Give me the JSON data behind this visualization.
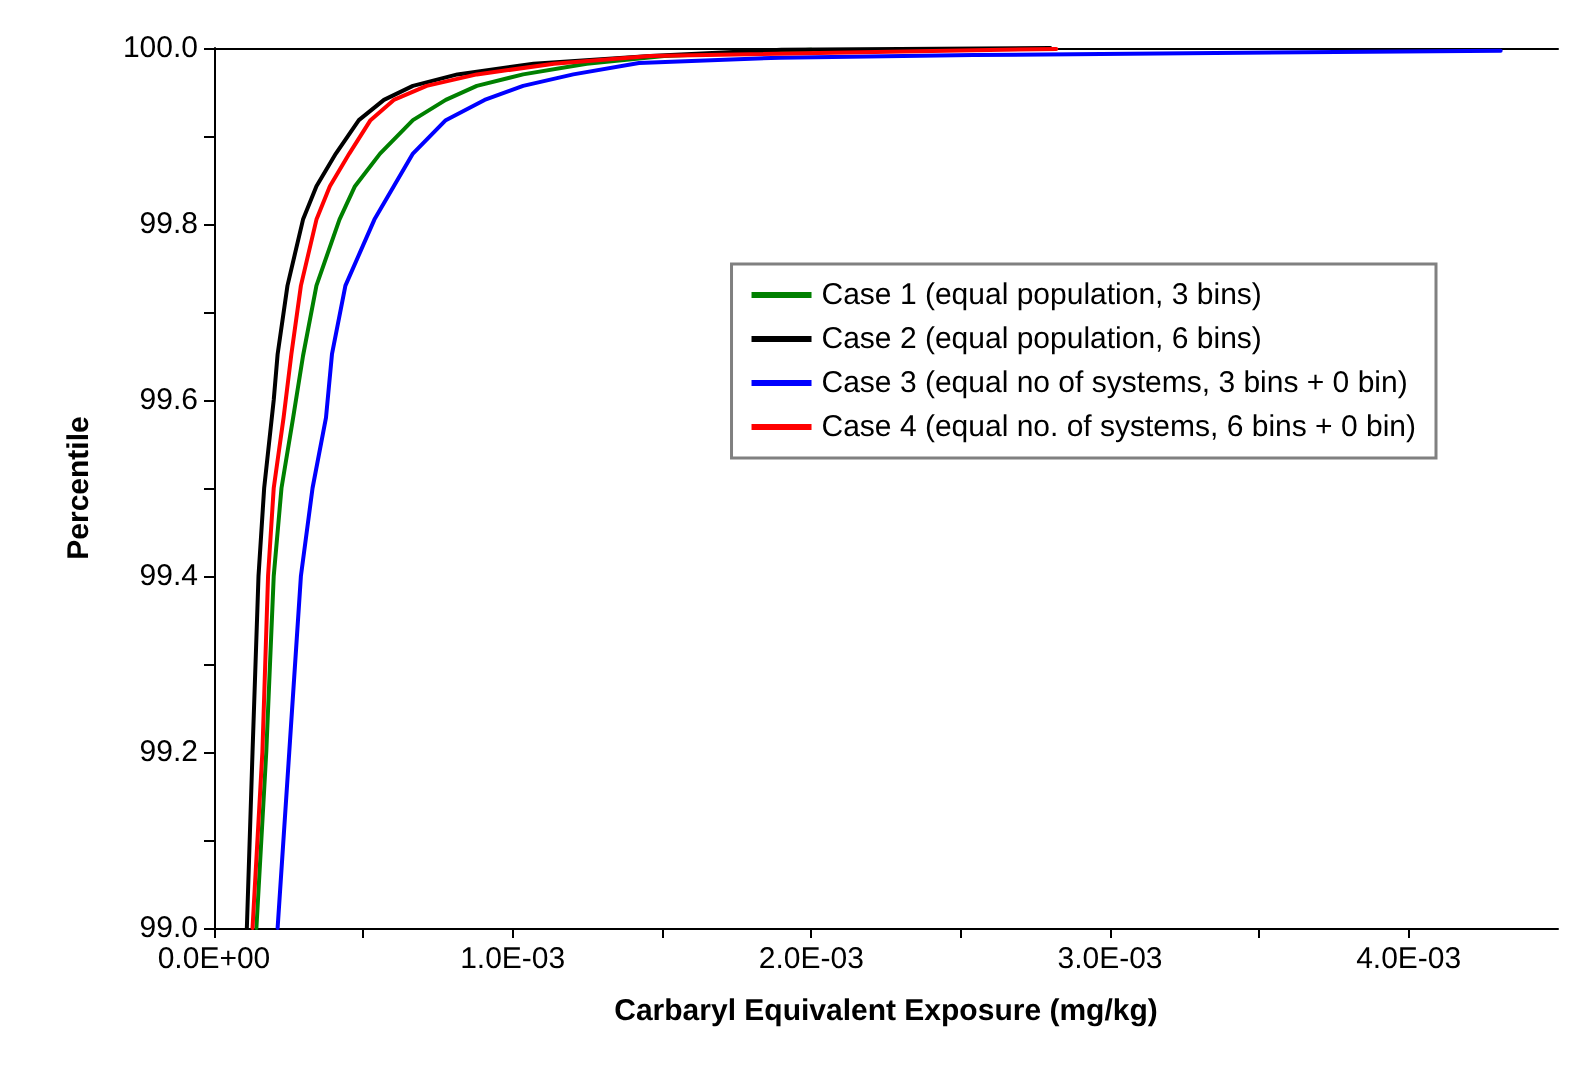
{
  "chart_data": {
    "type": "line",
    "xlabel": "Carbaryl Equivalent Exposure (mg/kg)",
    "ylabel": "Percentile",
    "xlim": [
      0,
      0.0045
    ],
    "ylim": [
      99.0,
      100.0
    ],
    "xticks": [
      {
        "value": 0,
        "label": "0.0E+00"
      },
      {
        "value": 0.0005,
        "label": null
      },
      {
        "value": 0.001,
        "label": "1.0E-03"
      },
      {
        "value": 0.0015,
        "label": null
      },
      {
        "value": 0.002,
        "label": "2.0E-03"
      },
      {
        "value": 0.0025,
        "label": null
      },
      {
        "value": 0.003,
        "label": "3.0E-03"
      },
      {
        "value": 0.0035,
        "label": null
      },
      {
        "value": 0.004,
        "label": "4.0E-03"
      }
    ],
    "yticks": [
      {
        "value": 99.0,
        "label": "99.0"
      },
      {
        "value": 99.1,
        "label": null
      },
      {
        "value": 99.2,
        "label": "99.2"
      },
      {
        "value": 99.3,
        "label": null
      },
      {
        "value": 99.4,
        "label": "99.4"
      },
      {
        "value": 99.5,
        "label": null
      },
      {
        "value": 99.6,
        "label": "99.6"
      },
      {
        "value": 99.7,
        "label": null
      },
      {
        "value": 99.8,
        "label": "99.8"
      },
      {
        "value": 99.9,
        "label": null
      },
      {
        "value": 100.0,
        "label": "100.0"
      }
    ],
    "grid": false,
    "legend": "right",
    "series": [
      {
        "name": "Case 1 (equal population, 3 bins)",
        "color": "#008000",
        "x": [
          0.000142,
          0.000175,
          0.0002,
          0.000226,
          0.000265,
          0.000298,
          0.000343,
          0.00042,
          0.000472,
          0.000556,
          0.000666,
          0.000776,
          0.00088,
          0.001035,
          0.001248,
          0.001507,
          0.002
        ],
        "values": [
          99.0,
          99.2,
          99.4,
          99.5,
          99.58,
          99.65,
          99.73,
          99.805,
          99.843,
          99.88,
          99.918,
          99.941,
          99.957,
          99.97,
          99.982,
          99.991,
          99.998
        ]
      },
      {
        "name": "Case 2 (equal population, 6 bins)",
        "color": "#000000",
        "x": [
          0.00011,
          0.000129,
          0.000149,
          0.000168,
          0.0002,
          0.000213,
          0.000246,
          0.000298,
          0.000343,
          0.000408,
          0.000485,
          0.000569,
          0.000666,
          0.000815,
          0.00107,
          0.00146,
          0.0019,
          0.0028
        ],
        "values": [
          99.0,
          99.2,
          99.4,
          99.5,
          99.6,
          99.652,
          99.73,
          99.805,
          99.843,
          99.88,
          99.918,
          99.941,
          99.957,
          99.97,
          99.982,
          99.991,
          99.998,
          100.0
        ]
      },
      {
        "name": "Case 3 (equal no of systems, 3 bins + 0 bin)",
        "color": "#0000ff",
        "x": [
          0.000213,
          0.000252,
          0.000291,
          0.00033,
          0.000375,
          0.000395,
          0.00044,
          0.000537,
          0.000602,
          0.000666,
          0.000776,
          0.000906,
          0.001035,
          0.001203,
          0.001423,
          0.001895,
          0.002542,
          0.004308
        ],
        "values": [
          99.0,
          99.2,
          99.4,
          99.5,
          99.58,
          99.652,
          99.73,
          99.805,
          99.843,
          99.88,
          99.918,
          99.941,
          99.957,
          99.97,
          99.983,
          99.989,
          99.992,
          99.997
        ]
      },
      {
        "name": "Case 4 (equal no. of systems, 6 bins + 0 bin)",
        "color": "#ff0000",
        "x": [
          0.000129,
          0.000162,
          0.000181,
          0.0002,
          0.000233,
          0.000259,
          0.000291,
          0.000343,
          0.000388,
          0.000453,
          0.000524,
          0.000602,
          0.000712,
          0.00088,
          0.001138,
          0.00146,
          0.00282
        ],
        "values": [
          99.0,
          99.2,
          99.4,
          99.5,
          99.58,
          99.652,
          99.73,
          99.805,
          99.843,
          99.88,
          99.918,
          99.941,
          99.957,
          99.97,
          99.982,
          99.991,
          99.999
        ]
      }
    ]
  }
}
